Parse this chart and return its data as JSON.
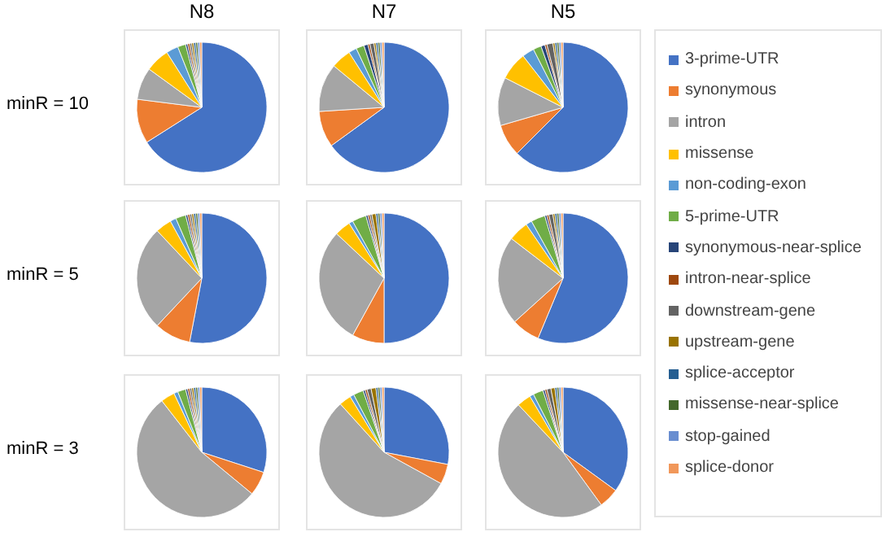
{
  "chart_data": [
    {
      "type": "pie",
      "title": "N8",
      "ylabel": "minR = 10",
      "legend": "right",
      "categories": [
        "3-prime-UTR",
        "synonymous",
        "intron",
        "missense",
        "non-coding-exon",
        "5-prime-UTR",
        "synonymous-near-splice",
        "intron-near-splice",
        "downstream-gene",
        "upstream-gene",
        "splice-acceptor",
        "missense-near-splice",
        "stop-gained",
        "splice-donor"
      ],
      "values": [
        66,
        11,
        8,
        6,
        3,
        2,
        0.5,
        0.5,
        0.5,
        0.5,
        0.5,
        0.5,
        0.5,
        0.5
      ],
      "colors": [
        "#4472c4",
        "#ed7d31",
        "#a5a5a5",
        "#ffc000",
        "#5b9bd5",
        "#70ad47",
        "#264478",
        "#9e480e",
        "#636363",
        "#997300",
        "#255e91",
        "#43682b",
        "#698ed0",
        "#f1975a"
      ]
    },
    {
      "type": "pie",
      "title": "N7",
      "values": [
        65,
        9,
        12,
        5,
        2,
        2,
        1,
        0.5,
        1,
        0.5,
        0.5,
        0.5,
        0.5,
        0.5
      ],
      "colors": [
        "#4472c4",
        "#ed7d31",
        "#a5a5a5",
        "#ffc000",
        "#5b9bd5",
        "#70ad47",
        "#264478",
        "#9e480e",
        "#636363",
        "#997300",
        "#255e91",
        "#43682b",
        "#698ed0",
        "#f1975a"
      ]
    },
    {
      "type": "pie",
      "title": "N5",
      "values": [
        62.5,
        8,
        12,
        7,
        3,
        2,
        1,
        0.5,
        1.5,
        0.5,
        0.5,
        0.5,
        0.5,
        0.5
      ],
      "colors": [
        "#4472c4",
        "#ed7d31",
        "#a5a5a5",
        "#ffc000",
        "#5b9bd5",
        "#70ad47",
        "#264478",
        "#9e480e",
        "#636363",
        "#997300",
        "#255e91",
        "#43682b",
        "#698ed0",
        "#f1975a"
      ]
    },
    {
      "type": "pie",
      "ylabel": "minR = 5",
      "values": [
        53,
        9,
        26,
        4,
        1.5,
        2.5,
        0.5,
        0.5,
        0.5,
        0.5,
        0.5,
        0.5,
        0.5,
        0.5
      ],
      "colors": [
        "#4472c4",
        "#ed7d31",
        "#a5a5a5",
        "#ffc000",
        "#5b9bd5",
        "#70ad47",
        "#264478",
        "#9e480e",
        "#636363",
        "#997300",
        "#255e91",
        "#43682b",
        "#698ed0",
        "#f1975a"
      ]
    },
    {
      "type": "pie",
      "values": [
        50,
        8,
        29,
        4,
        1,
        3.5,
        0.5,
        0.5,
        0.5,
        1,
        0.5,
        0.5,
        0.5,
        0.5
      ],
      "colors": [
        "#4472c4",
        "#ed7d31",
        "#a5a5a5",
        "#ffc000",
        "#5b9bd5",
        "#70ad47",
        "#264478",
        "#9e480e",
        "#636363",
        "#997300",
        "#255e91",
        "#43682b",
        "#698ed0",
        "#f1975a"
      ]
    },
    {
      "type": "pie",
      "values": [
        56,
        7,
        22,
        5,
        1.5,
        3.5,
        0.5,
        0.5,
        1,
        0.5,
        0.5,
        0.5,
        0.5,
        0.5
      ],
      "colors": [
        "#4472c4",
        "#ed7d31",
        "#a5a5a5",
        "#ffc000",
        "#5b9bd5",
        "#70ad47",
        "#264478",
        "#9e480e",
        "#636363",
        "#997300",
        "#255e91",
        "#43682b",
        "#698ed0",
        "#f1975a"
      ]
    },
    {
      "type": "pie",
      "ylabel": "minR = 3",
      "values": [
        30,
        6,
        53.5,
        3.5,
        1,
        2,
        0.5,
        0.5,
        0.5,
        0.5,
        0.5,
        0.5,
        0.5,
        0.5
      ],
      "colors": [
        "#4472c4",
        "#ed7d31",
        "#a5a5a5",
        "#ffc000",
        "#5b9bd5",
        "#70ad47",
        "#264478",
        "#9e480e",
        "#636363",
        "#997300",
        "#255e91",
        "#43682b",
        "#698ed0",
        "#f1975a"
      ]
    },
    {
      "type": "pie",
      "values": [
        28,
        5,
        55.3,
        3,
        1,
        2.5,
        0.5,
        0.5,
        1,
        1.2,
        0.5,
        0.5,
        0.5,
        0.5
      ],
      "colors": [
        "#4472c4",
        "#ed7d31",
        "#a5a5a5",
        "#ffc000",
        "#5b9bd5",
        "#70ad47",
        "#264478",
        "#9e480e",
        "#636363",
        "#997300",
        "#255e91",
        "#43682b",
        "#698ed0",
        "#f1975a"
      ]
    },
    {
      "type": "pie",
      "values": [
        35,
        5,
        48,
        3.5,
        1,
        2.5,
        0.5,
        0.5,
        1,
        1,
        0.5,
        0.5,
        0.5,
        0.5
      ],
      "colors": [
        "#4472c4",
        "#ed7d31",
        "#a5a5a5",
        "#ffc000",
        "#5b9bd5",
        "#70ad47",
        "#264478",
        "#9e480e",
        "#636363",
        "#997300",
        "#255e91",
        "#43682b",
        "#698ed0",
        "#f1975a"
      ]
    }
  ]
}
